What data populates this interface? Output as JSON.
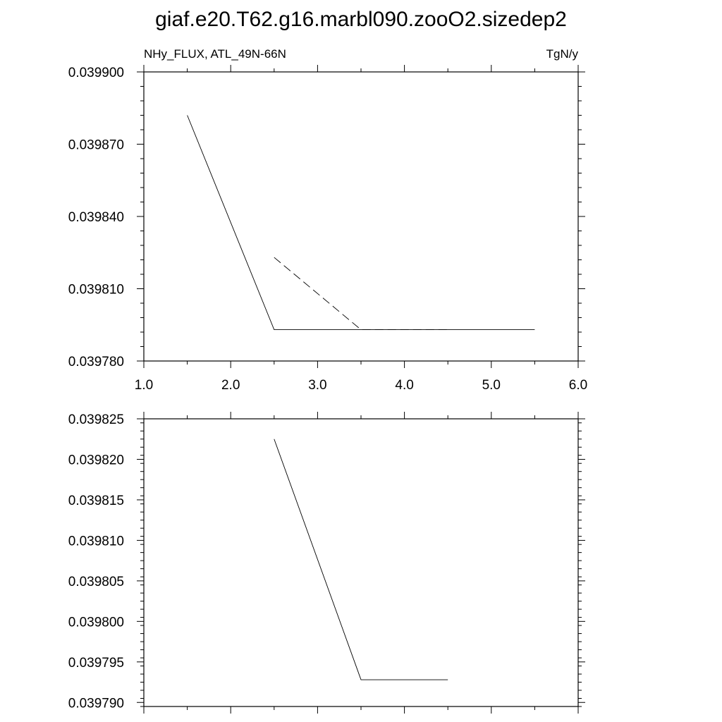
{
  "figure": {
    "title": "giaf.e20.T62.g16.marbl090.zooO2.sizedep2"
  },
  "chart_data": [
    {
      "type": "line",
      "title": "",
      "left_label": "NHy_FLUX, ATL_49N-66N",
      "right_label": "TgN/y",
      "xlim": [
        1.0,
        6.0
      ],
      "ylim": [
        0.03978,
        0.0399
      ],
      "x_tick_labels": [
        "1.0",
        "2.0",
        "3.0",
        "4.0",
        "5.0",
        "6.0"
      ],
      "x_ticks": [
        1.0,
        2.0,
        3.0,
        4.0,
        5.0,
        6.0
      ],
      "y_tick_labels": [
        "0.039780",
        "0.039810",
        "0.039840",
        "0.039870",
        "0.039900"
      ],
      "y_ticks": [
        0.03978,
        0.03981,
        0.03984,
        0.03987,
        0.0399
      ],
      "y_minor_step": 6e-06,
      "x_minor_step": 0.5,
      "grid": false,
      "series": [
        {
          "style": "solid",
          "x": [
            1.5,
            2.5,
            3.5,
            4.5,
            5.5
          ],
          "y": [
            0.039882,
            0.039793,
            0.039793,
            0.039793,
            0.039793
          ]
        },
        {
          "style": "dashed",
          "x": [
            2.5,
            3.5,
            4.5
          ],
          "y": [
            0.039823,
            0.039793,
            0.039793
          ]
        }
      ]
    },
    {
      "type": "line",
      "title": "",
      "xlim": [
        1.0,
        6.0
      ],
      "ylim": [
        0.0397895,
        0.039825
      ],
      "x_tick_labels": [],
      "x_ticks": [
        1.0,
        2.0,
        3.0,
        4.0,
        5.0,
        6.0
      ],
      "y_tick_labels": [
        "0.039790",
        "0.039795",
        "0.039800",
        "0.039805",
        "0.039810",
        "0.039815",
        "0.039820",
        "0.039825"
      ],
      "y_ticks": [
        0.03979,
        0.039795,
        0.0398,
        0.039805,
        0.03981,
        0.039815,
        0.03982,
        0.039825
      ],
      "y_minor_step": 1e-06,
      "x_minor_step": 0.5,
      "grid": false,
      "series": [
        {
          "style": "solid",
          "x": [
            2.5,
            3.5,
            4.5
          ],
          "y": [
            0.0398225,
            0.0397928,
            0.0397928
          ]
        }
      ]
    }
  ]
}
